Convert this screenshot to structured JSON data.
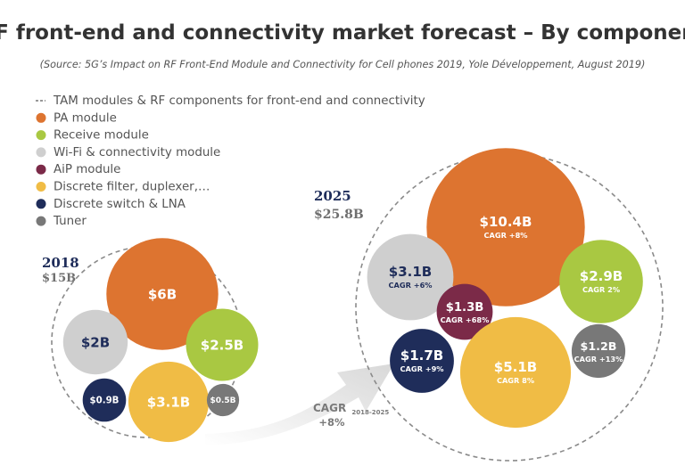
{
  "chart_data": {
    "type": "bubble",
    "title": "RF front-end and connectivity market forecast – By component",
    "subtitle": "(Source: 5G’s Impact on RF Front-End Module and Connectivity for Cell phones 2019, Yole Développement, August 2019)",
    "legend": [
      {
        "label": "TAM modules & RF components for front-end and connectivity",
        "marker": "dashed-line",
        "color": "#777777"
      },
      {
        "label": "PA module",
        "marker": "circle",
        "color": "#dd7430"
      },
      {
        "label": "Receive module",
        "marker": "circle",
        "color": "#a9c842"
      },
      {
        "label": "Wi-Fi & connectivity module",
        "marker": "circle",
        "color": "#cfcfcf"
      },
      {
        "label": "AiP module",
        "marker": "circle",
        "color": "#7b2a48"
      },
      {
        "label": "Discrete filter, duplexer,…",
        "marker": "circle",
        "color": "#f0bc45"
      },
      {
        "label": "Discrete switch & LNA",
        "marker": "circle",
        "color": "#1f2d5a"
      },
      {
        "label": "Tuner",
        "marker": "circle",
        "color": "#787878"
      }
    ],
    "groups": [
      {
        "year": "2018",
        "total_label": "$15B",
        "total_value": 15,
        "bubbles": [
          {
            "component": "PA module",
            "value": 6,
            "label": "$6B",
            "cagr": ""
          },
          {
            "component": "Wi-Fi & connectivity module",
            "value": 2,
            "label": "$2B",
            "cagr": ""
          },
          {
            "component": "Receive module",
            "value": 2.5,
            "label": "$2.5B",
            "cagr": ""
          },
          {
            "component": "Discrete switch & LNA",
            "value": 0.9,
            "label": "$0.9B",
            "cagr": ""
          },
          {
            "component": "Discrete filter, duplexer,…",
            "value": 3.1,
            "label": "$3.1B",
            "cagr": ""
          },
          {
            "component": "Tuner",
            "value": 0.5,
            "label": "$0.5B",
            "cagr": ""
          }
        ]
      },
      {
        "year": "2025",
        "total_label": "$25.8B",
        "total_value": 25.8,
        "bubbles": [
          {
            "component": "PA module",
            "value": 10.4,
            "label": "$10.4B",
            "cagr": "CAGR +8%"
          },
          {
            "component": "Wi-Fi & connectivity module",
            "value": 3.1,
            "label": "$3.1B",
            "cagr": "CAGR +6%"
          },
          {
            "component": "Receive module",
            "value": 2.9,
            "label": "$2.9B",
            "cagr": "CAGR 2%"
          },
          {
            "component": "AiP module",
            "value": 1.3,
            "label": "$1.3B",
            "cagr": "CAGR +68%"
          },
          {
            "component": "Discrete switch & LNA",
            "value": 1.7,
            "label": "$1.7B",
            "cagr": "CAGR +9%"
          },
          {
            "component": "Discrete filter, duplexer,…",
            "value": 5.1,
            "label": "$5.1B",
            "cagr": "CAGR 8%"
          },
          {
            "component": "Tuner",
            "value": 1.2,
            "label": "$1.2B",
            "cagr": "CAGR +13%"
          }
        ]
      }
    ],
    "overall_cagr": {
      "label": "CAGR",
      "period": "2018-2025",
      "value": "+8%"
    }
  }
}
